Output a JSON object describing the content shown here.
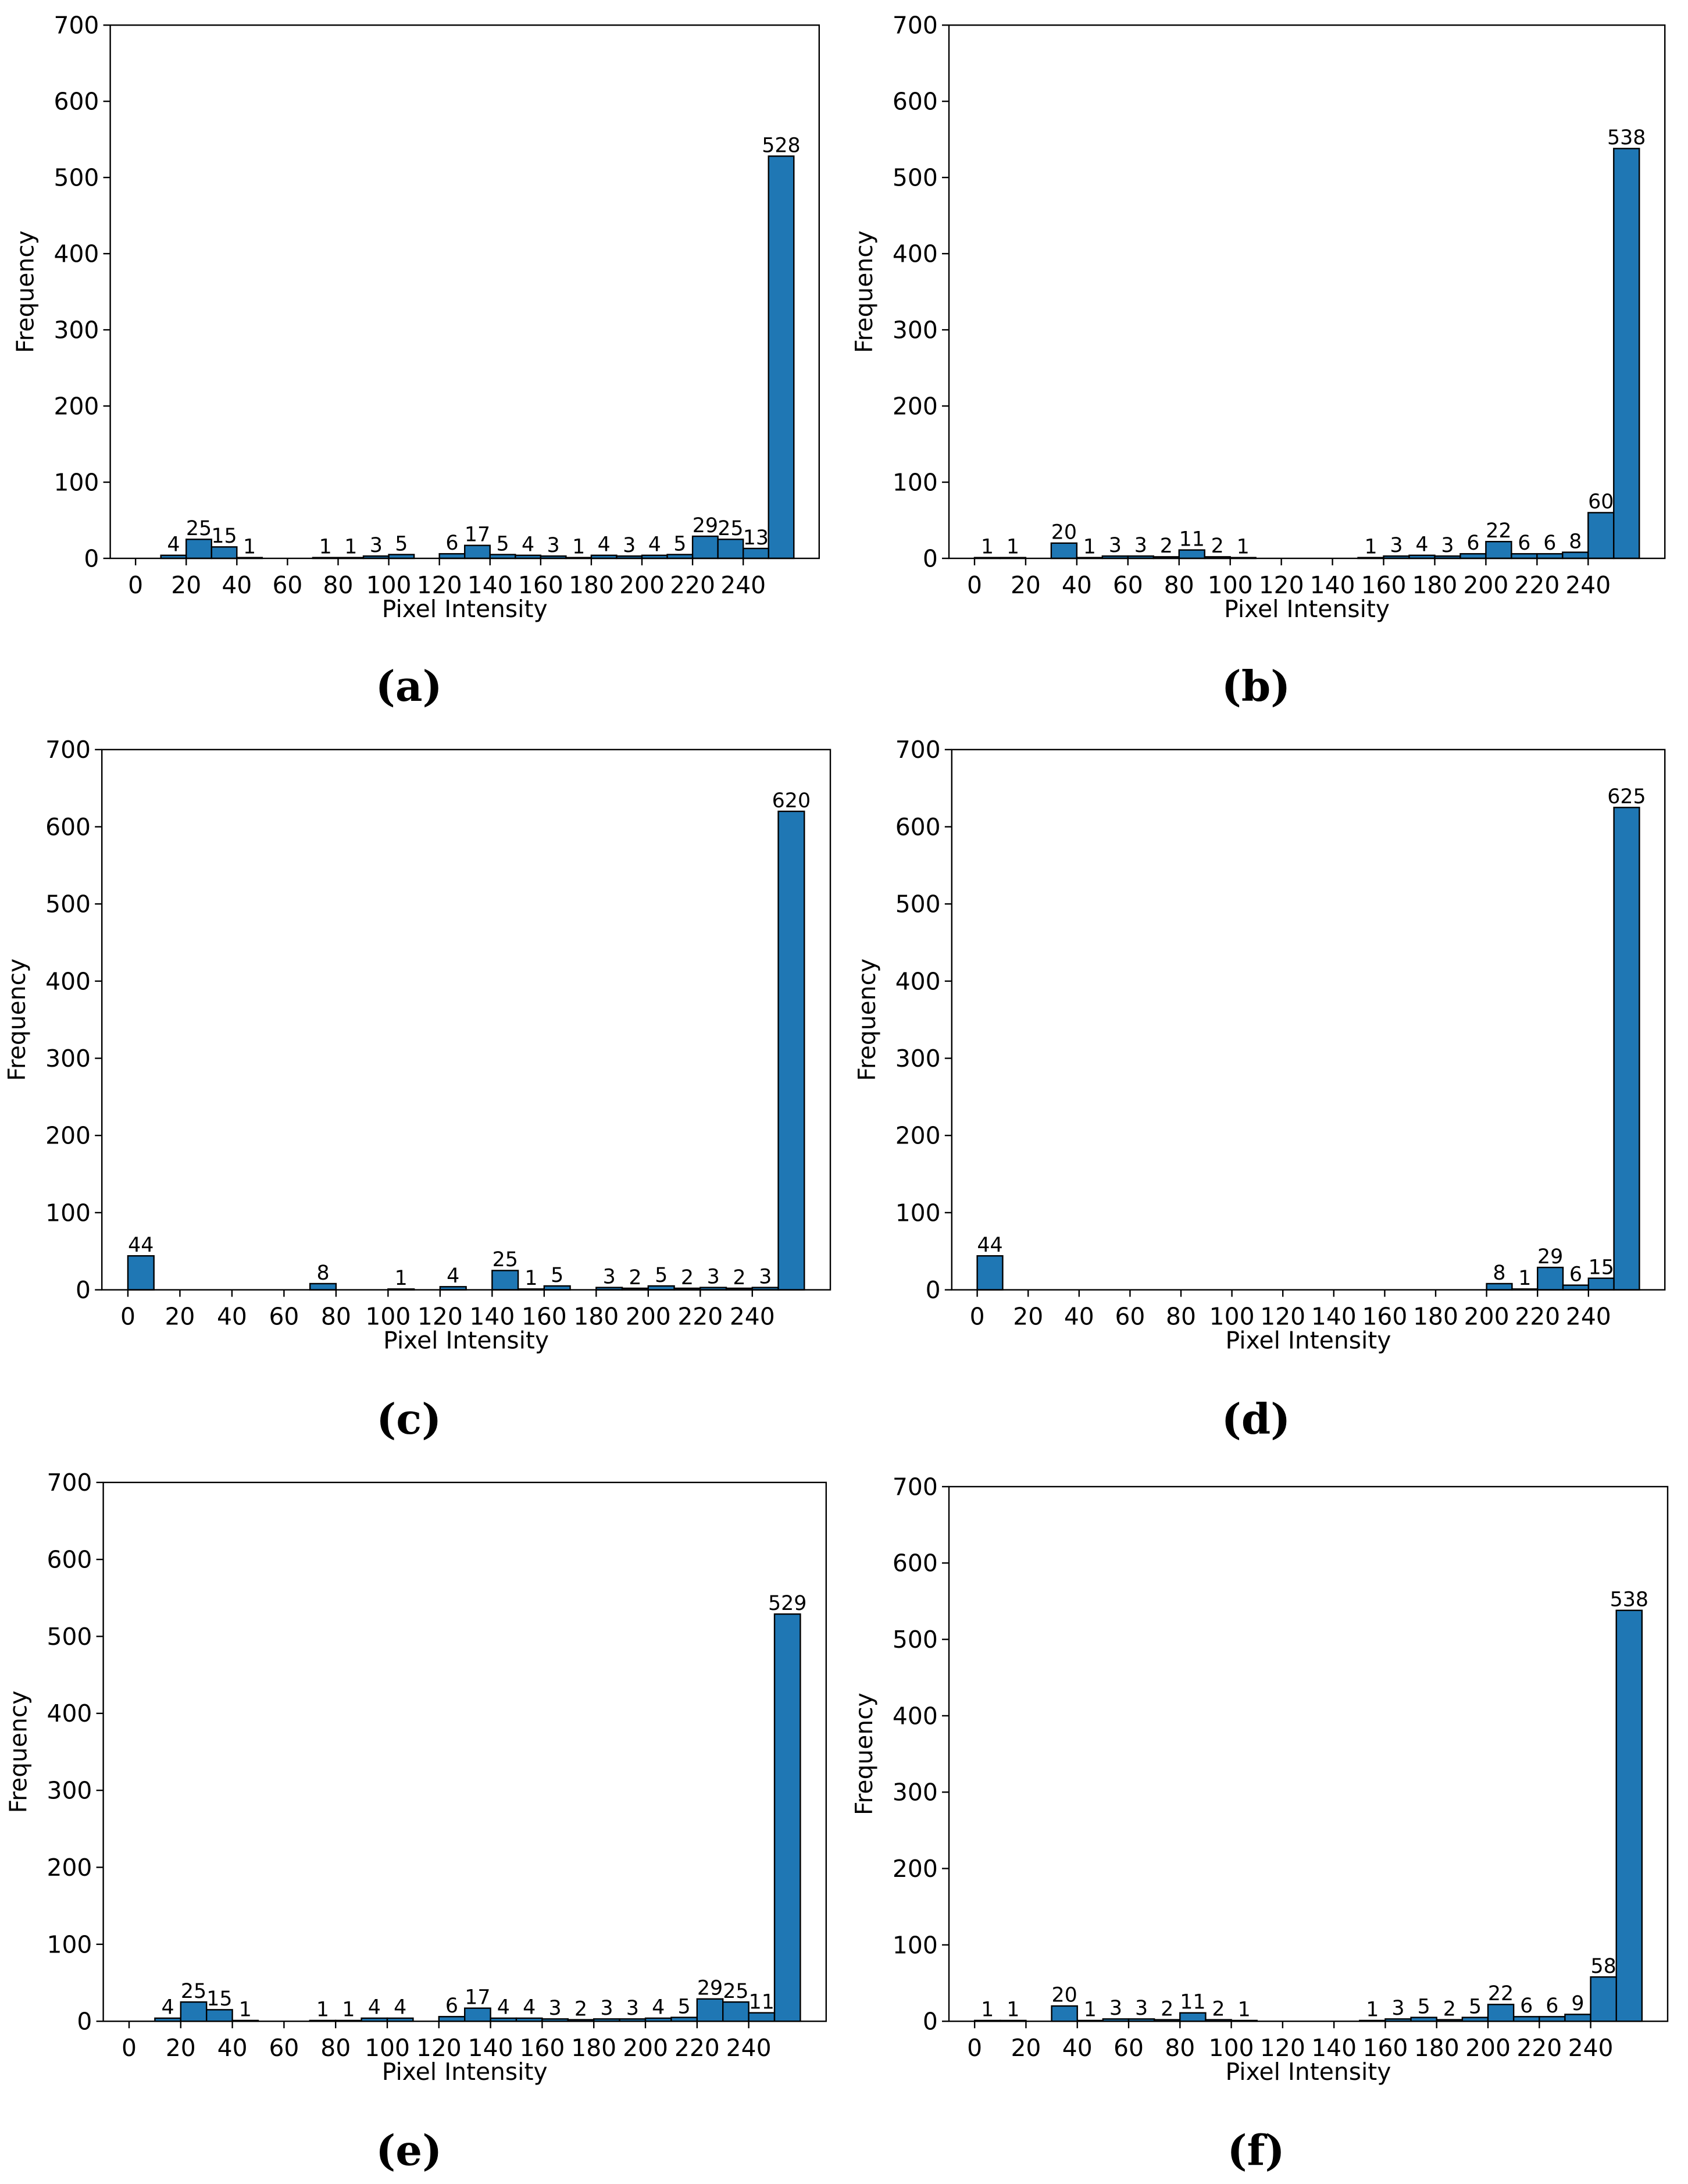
{
  "chart_data": [
    {
      "type": "histogram",
      "caption": "(a)",
      "x_label": "Pixel Intensity",
      "y_label": "Frequency",
      "bins": [
        0,
        10,
        20,
        30,
        40,
        50,
        60,
        70,
        80,
        90,
        100,
        110,
        120,
        130,
        140,
        150,
        160,
        170,
        180,
        190,
        200,
        210,
        220,
        230,
        240,
        250,
        260
      ],
      "counts": [
        0,
        4,
        25,
        15,
        1,
        0,
        0,
        1,
        1,
        3,
        5,
        0,
        6,
        17,
        5,
        4,
        3,
        1,
        4,
        3,
        4,
        5,
        29,
        25,
        13,
        528
      ],
      "color": "#1f77b4",
      "edge_color": "#000000",
      "xlim": [
        -10,
        270
      ],
      "ylim": [
        0,
        700
      ],
      "xticks": [
        0,
        20,
        40,
        60,
        80,
        100,
        120,
        140,
        160,
        180,
        200,
        220,
        240
      ],
      "yticks": [
        0,
        100,
        200,
        300,
        400,
        500,
        600,
        700
      ]
    },
    {
      "type": "histogram",
      "caption": "(b)",
      "x_label": "Pixel Intensity",
      "y_label": "Frequency",
      "bins": [
        0,
        10,
        20,
        30,
        40,
        50,
        60,
        70,
        80,
        90,
        100,
        110,
        120,
        130,
        140,
        150,
        160,
        170,
        180,
        190,
        200,
        210,
        220,
        230,
        240,
        250,
        260
      ],
      "counts": [
        1,
        1,
        0,
        20,
        1,
        3,
        3,
        2,
        11,
        2,
        1,
        0,
        0,
        0,
        0,
        1,
        3,
        4,
        3,
        6,
        22,
        6,
        6,
        8,
        60,
        538
      ],
      "color": "#1f77b4",
      "edge_color": "#000000",
      "xlim": [
        -10,
        270
      ],
      "ylim": [
        0,
        700
      ],
      "xticks": [
        0,
        20,
        40,
        60,
        80,
        100,
        120,
        140,
        160,
        180,
        200,
        220,
        240
      ],
      "yticks": [
        0,
        100,
        200,
        300,
        400,
        500,
        600,
        700
      ]
    },
    {
      "type": "histogram",
      "caption": "(c)",
      "x_label": "Pixel Intensity",
      "y_label": "Frequency",
      "bins": [
        0,
        10,
        20,
        30,
        40,
        50,
        60,
        70,
        80,
        90,
        100,
        110,
        120,
        130,
        140,
        150,
        160,
        170,
        180,
        190,
        200,
        210,
        220,
        230,
        240,
        250,
        260
      ],
      "counts": [
        44,
        0,
        0,
        0,
        0,
        0,
        0,
        8,
        0,
        0,
        1,
        0,
        4,
        0,
        25,
        1,
        5,
        0,
        3,
        2,
        5,
        2,
        3,
        2,
        3,
        620
      ],
      "color": "#1f77b4",
      "edge_color": "#000000",
      "xlim": [
        -10,
        270
      ],
      "ylim": [
        0,
        700
      ],
      "xticks": [
        0,
        20,
        40,
        60,
        80,
        100,
        120,
        140,
        160,
        180,
        200,
        220,
        240
      ],
      "yticks": [
        0,
        100,
        200,
        300,
        400,
        500,
        600,
        700
      ]
    },
    {
      "type": "histogram",
      "caption": "(d)",
      "x_label": "Pixel Intensity",
      "y_label": "Frequency",
      "bins": [
        0,
        10,
        20,
        30,
        40,
        50,
        60,
        70,
        80,
        90,
        100,
        110,
        120,
        130,
        140,
        150,
        160,
        170,
        180,
        190,
        200,
        210,
        220,
        230,
        240,
        250,
        260
      ],
      "counts": [
        44,
        0,
        0,
        0,
        0,
        0,
        0,
        0,
        0,
        0,
        0,
        0,
        0,
        0,
        0,
        0,
        0,
        0,
        0,
        0,
        8,
        1,
        29,
        6,
        15,
        625
      ],
      "color": "#1f77b4",
      "edge_color": "#000000",
      "xlim": [
        -10,
        270
      ],
      "ylim": [
        0,
        700
      ],
      "xticks": [
        0,
        20,
        40,
        60,
        80,
        100,
        120,
        140,
        160,
        180,
        200,
        220,
        240
      ],
      "yticks": [
        0,
        100,
        200,
        300,
        400,
        500,
        600,
        700
      ]
    },
    {
      "type": "histogram",
      "caption": "(e)",
      "x_label": "Pixel Intensity",
      "y_label": "Frequency",
      "bins": [
        0,
        10,
        20,
        30,
        40,
        50,
        60,
        70,
        80,
        90,
        100,
        110,
        120,
        130,
        140,
        150,
        160,
        170,
        180,
        190,
        200,
        210,
        220,
        230,
        240,
        250,
        260
      ],
      "counts": [
        0,
        4,
        25,
        15,
        1,
        0,
        0,
        1,
        1,
        4,
        4,
        0,
        6,
        17,
        4,
        4,
        3,
        2,
        3,
        3,
        4,
        5,
        29,
        25,
        11,
        529
      ],
      "color": "#1f77b4",
      "edge_color": "#000000",
      "xlim": [
        -10,
        270
      ],
      "ylim": [
        0,
        700
      ],
      "xticks": [
        0,
        20,
        40,
        60,
        80,
        100,
        120,
        140,
        160,
        180,
        200,
        220,
        240
      ],
      "yticks": [
        0,
        100,
        200,
        300,
        400,
        500,
        600,
        700
      ]
    },
    {
      "type": "histogram",
      "caption": "(f)",
      "x_label": "Pixel Intensity",
      "y_label": "Frequency",
      "bins": [
        0,
        10,
        20,
        30,
        40,
        50,
        60,
        70,
        80,
        90,
        100,
        110,
        120,
        130,
        140,
        150,
        160,
        170,
        180,
        190,
        200,
        210,
        220,
        230,
        240,
        250,
        260
      ],
      "counts": [
        1,
        1,
        0,
        20,
        1,
        3,
        3,
        2,
        11,
        2,
        1,
        0,
        0,
        0,
        0,
        1,
        3,
        5,
        2,
        5,
        22,
        6,
        6,
        9,
        58,
        538
      ],
      "color": "#1f77b4",
      "edge_color": "#000000",
      "xlim": [
        -10,
        270
      ],
      "ylim": [
        0,
        700
      ],
      "xticks": [
        0,
        20,
        40,
        60,
        80,
        100,
        120,
        140,
        160,
        180,
        200,
        220,
        240
      ],
      "yticks": [
        0,
        100,
        200,
        300,
        400,
        500,
        600,
        700
      ]
    }
  ]
}
